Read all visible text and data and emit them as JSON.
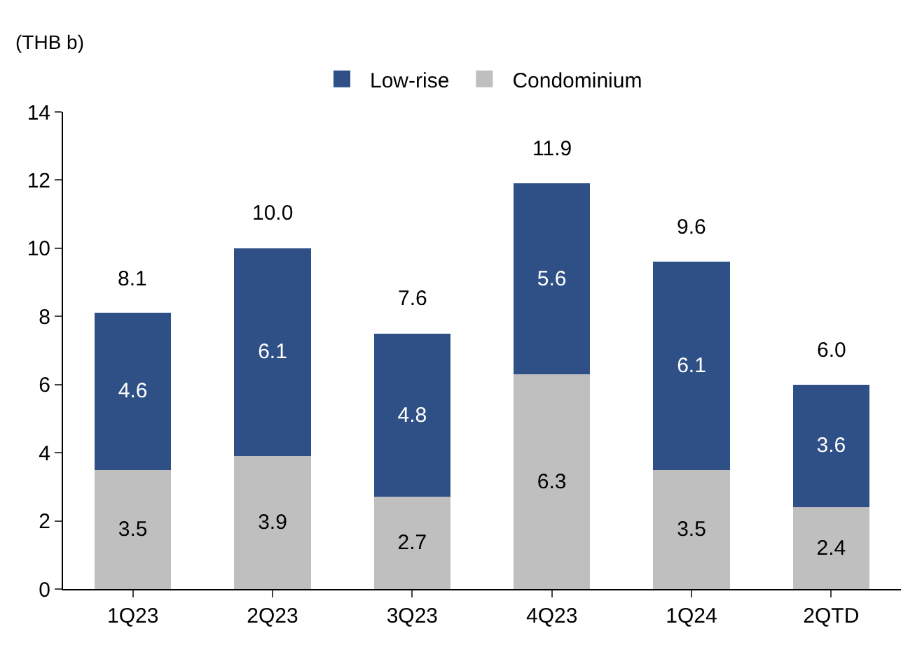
{
  "chart_data": {
    "type": "bar",
    "stacked": true,
    "ylabel": "(THB b)",
    "categories": [
      "1Q23",
      "2Q23",
      "3Q23",
      "4Q23",
      "1Q24",
      "2QTD"
    ],
    "series": [
      {
        "name": "Condominium",
        "color": "#bfbfbf",
        "values": [
          3.5,
          3.9,
          2.7,
          6.3,
          3.5,
          2.4
        ]
      },
      {
        "name": "Low-rise",
        "color": "#2f5086",
        "values": [
          4.6,
          6.1,
          4.8,
          5.6,
          6.1,
          3.6
        ]
      }
    ],
    "totals": [
      "8.1",
      "10.0",
      "7.6",
      "11.9",
      "9.6",
      "6.0"
    ],
    "ylim": [
      0,
      14
    ],
    "yticks": [
      0,
      2,
      4,
      6,
      8,
      10,
      12,
      14
    ],
    "grid": false,
    "legend": "top",
    "data_labels": true
  }
}
